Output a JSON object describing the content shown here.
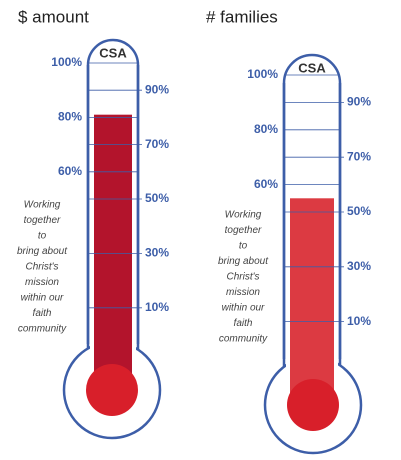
{
  "chart_data": [
    {
      "type": "thermometer",
      "title": "$ amount",
      "label": "CSA",
      "caption": [
        "Working",
        "together",
        "to",
        "bring about",
        "Christ's",
        "mission",
        "within our",
        "faith",
        "community"
      ],
      "values": [
        81
      ],
      "color": "#b3142c",
      "ylim": [
        0,
        100
      ],
      "yticks": [
        {
          "value": 60,
          "label": "60%"
        },
        {
          "value": 80,
          "label": "80%"
        },
        {
          "value": 100,
          "label": "100%"
        }
      ],
      "y2lim": [
        0,
        100
      ],
      "y2ticks": [
        {
          "value": 10,
          "label": "10%"
        },
        {
          "value": 30,
          "label": "30%"
        },
        {
          "value": 50,
          "label": "50%"
        },
        {
          "value": 70,
          "label": "70%"
        },
        {
          "value": 90,
          "label": "90%"
        }
      ]
    },
    {
      "type": "thermometer",
      "title": "# families",
      "label": "CSA",
      "caption": [
        "Working",
        "together",
        "to",
        "bring about",
        "Christ's",
        "mission",
        "within our",
        "faith",
        "community"
      ],
      "values": [
        55
      ],
      "color": "#dc3a42",
      "ylim": [
        0,
        100
      ],
      "yticks": [
        {
          "value": 60,
          "label": "60%"
        },
        {
          "value": 80,
          "label": "80%"
        },
        {
          "value": 100,
          "label": "100%"
        }
      ],
      "y2lim": [
        0,
        100
      ],
      "y2ticks": [
        {
          "value": 10,
          "label": "10%"
        },
        {
          "value": 30,
          "label": "30%"
        },
        {
          "value": 50,
          "label": "50%"
        },
        {
          "value": 70,
          "label": "70%"
        },
        {
          "value": 90,
          "label": "90%"
        }
      ]
    }
  ]
}
